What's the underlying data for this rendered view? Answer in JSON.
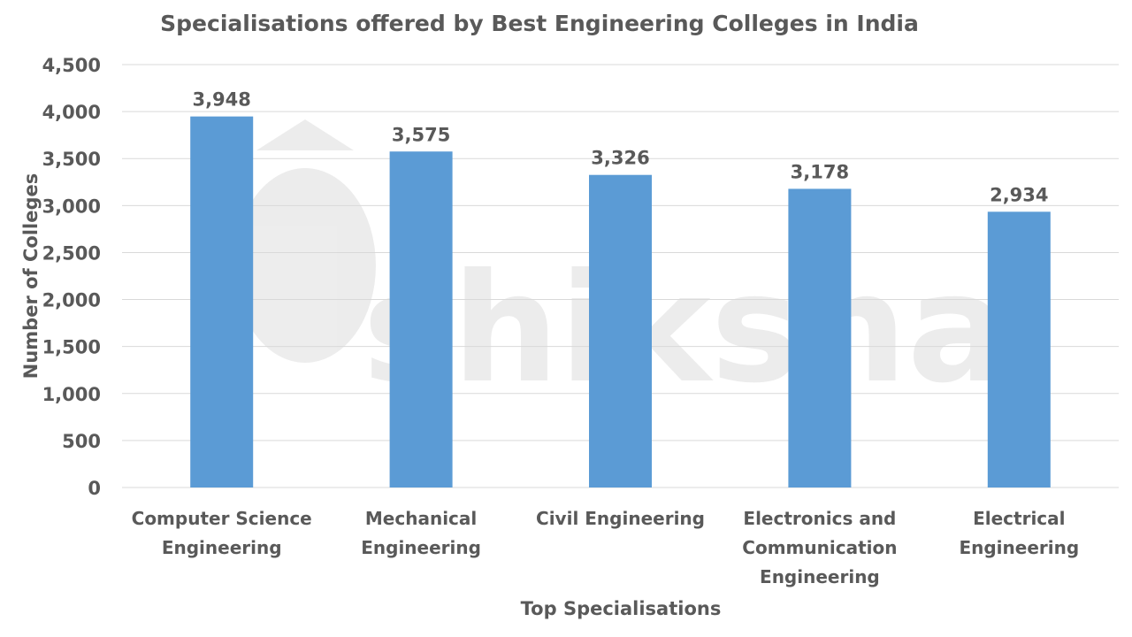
{
  "chart_data": {
    "type": "bar",
    "title": "Specialisations offered by Best Engineering Colleges in India",
    "xlabel": "Top Specialisations",
    "ylabel": "Number of Colleges",
    "ylim": [
      0,
      4500
    ],
    "yticks": [
      0,
      500,
      1000,
      1500,
      2000,
      2500,
      3000,
      3500,
      4000,
      4500
    ],
    "ytick_labels": [
      "0",
      "500",
      "1,000",
      "1,500",
      "2,000",
      "2,500",
      "3,000",
      "3,500",
      "4,000",
      "4,500"
    ],
    "categories": [
      [
        "Computer Science",
        "Engineering"
      ],
      [
        "Mechanical",
        "Engineering"
      ],
      [
        "Civil Engineering"
      ],
      [
        "Electronics and",
        "Communication",
        "Engineering"
      ],
      [
        "Electrical",
        "Engineering"
      ]
    ],
    "values": [
      3948,
      3575,
      3326,
      3178,
      2934
    ],
    "data_labels": [
      "3,948",
      "3,575",
      "3,326",
      "3,178",
      "2,934"
    ],
    "grid": true,
    "legend": "none",
    "colors": {
      "bar": "#5B9BD5",
      "text": "#595959",
      "grid": "#D9D9D9"
    }
  },
  "watermark": {
    "text": "shiksha"
  }
}
